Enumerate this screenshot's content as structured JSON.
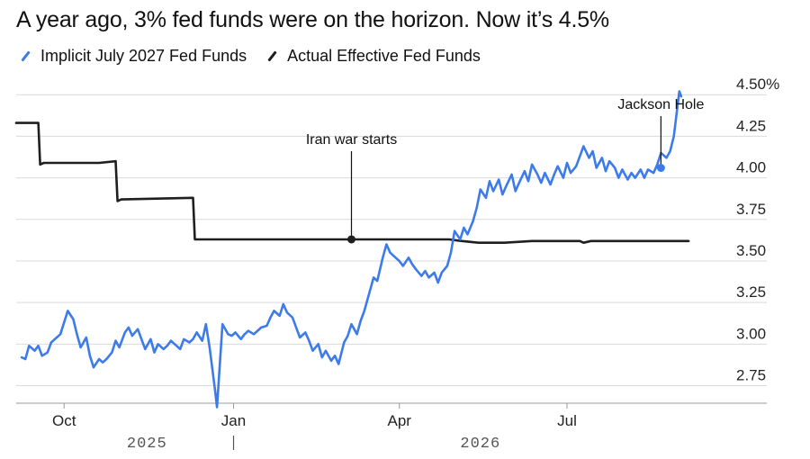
{
  "title": "A year ago, 3% fed funds were on the horizon. Now it’s 4.5%",
  "colors": {
    "implicit": "#3D7BEA",
    "actual": "#1F1F1F",
    "grid": "#D9D9D9"
  },
  "chart_data": {
    "type": "line",
    "ylim": [
      2.65,
      4.55
    ],
    "yticks": [
      2.75,
      3.0,
      3.25,
      3.5,
      3.75,
      4.0,
      4.25,
      4.5
    ],
    "ytick_labels": [
      "2.75",
      "3.00",
      "3.25",
      "3.50",
      "3.75",
      "4.00",
      "4.25",
      "4.50%"
    ],
    "xlim": [
      "2025-09-05",
      "2026-09-25"
    ],
    "xticks": [
      {
        "date": "2025-10-01",
        "label": "Oct"
      },
      {
        "date": "2026-01-01",
        "label": "Jan"
      },
      {
        "date": "2026-04-01",
        "label": "Apr"
      },
      {
        "date": "2026-07-01",
        "label": "Jul"
      }
    ],
    "year_labels": [
      {
        "date": "2025-11-15",
        "label": "2025"
      },
      {
        "date": "2026-05-15",
        "label": "2026"
      }
    ],
    "year_divider": "2026-01-01",
    "grid": "horizontal",
    "legend_position": "top-left",
    "series": [
      {
        "name": "Implicit July 2027 Fed Funds",
        "color_key": "implicit",
        "points": [
          [
            "2025-09-08",
            2.92
          ],
          [
            "2025-09-10",
            2.91
          ],
          [
            "2025-09-12",
            2.99
          ],
          [
            "2025-09-15",
            2.96
          ],
          [
            "2025-09-17",
            2.99
          ],
          [
            "2025-09-19",
            2.93
          ],
          [
            "2025-09-22",
            2.95
          ],
          [
            "2025-09-24",
            3.01
          ],
          [
            "2025-09-26",
            3.03
          ],
          [
            "2025-09-29",
            3.06
          ],
          [
            "2025-10-01",
            3.13
          ],
          [
            "2025-10-03",
            3.2
          ],
          [
            "2025-10-06",
            3.15
          ],
          [
            "2025-10-08",
            3.06
          ],
          [
            "2025-10-10",
            2.98
          ],
          [
            "2025-10-13",
            3.04
          ],
          [
            "2025-10-15",
            2.93
          ],
          [
            "2025-10-17",
            2.86
          ],
          [
            "2025-10-20",
            2.91
          ],
          [
            "2025-10-22",
            2.89
          ],
          [
            "2025-10-24",
            2.91
          ],
          [
            "2025-10-27",
            2.95
          ],
          [
            "2025-10-29",
            3.02
          ],
          [
            "2025-10-31",
            2.98
          ],
          [
            "2025-11-03",
            3.07
          ],
          [
            "2025-11-05",
            3.1
          ],
          [
            "2025-11-07",
            3.05
          ],
          [
            "2025-11-10",
            3.09
          ],
          [
            "2025-11-12",
            3.03
          ],
          [
            "2025-11-14",
            2.97
          ],
          [
            "2025-11-17",
            3.03
          ],
          [
            "2025-11-19",
            2.95
          ],
          [
            "2025-11-21",
            3.0
          ],
          [
            "2025-11-24",
            2.97
          ],
          [
            "2025-11-26",
            2.99
          ],
          [
            "2025-11-28",
            3.02
          ],
          [
            "2025-12-01",
            2.99
          ],
          [
            "2025-12-03",
            2.97
          ],
          [
            "2025-12-05",
            3.03
          ],
          [
            "2025-12-08",
            3.01
          ],
          [
            "2025-12-10",
            3.03
          ],
          [
            "2025-12-12",
            3.07
          ],
          [
            "2025-12-15",
            3.02
          ],
          [
            "2025-12-17",
            3.12
          ],
          [
            "2025-12-19",
            2.98
          ],
          [
            "2025-12-22",
            2.72
          ],
          [
            "2025-12-23",
            2.62
          ],
          [
            "2025-12-26",
            3.12
          ],
          [
            "2025-12-29",
            3.06
          ],
          [
            "2025-12-31",
            3.05
          ],
          [
            "2026-01-02",
            3.07
          ],
          [
            "2026-01-05",
            3.03
          ],
          [
            "2026-01-07",
            3.06
          ],
          [
            "2026-01-09",
            3.08
          ],
          [
            "2026-01-12",
            3.06
          ],
          [
            "2026-01-14",
            3.08
          ],
          [
            "2026-01-16",
            3.1
          ],
          [
            "2026-01-19",
            3.11
          ],
          [
            "2026-01-21",
            3.16
          ],
          [
            "2026-01-23",
            3.2
          ],
          [
            "2026-01-26",
            3.17
          ],
          [
            "2026-01-28",
            3.24
          ],
          [
            "2026-01-30",
            3.19
          ],
          [
            "2026-02-02",
            3.16
          ],
          [
            "2026-02-04",
            3.1
          ],
          [
            "2026-02-06",
            3.04
          ],
          [
            "2026-02-09",
            3.07
          ],
          [
            "2026-02-11",
            3.02
          ],
          [
            "2026-02-13",
            2.96
          ],
          [
            "2026-02-16",
            3.0
          ],
          [
            "2026-02-18",
            2.92
          ],
          [
            "2026-02-20",
            2.96
          ],
          [
            "2026-02-23",
            2.9
          ],
          [
            "2026-02-25",
            2.93
          ],
          [
            "2026-02-27",
            2.88
          ],
          [
            "2026-03-02",
            3.01
          ],
          [
            "2026-03-04",
            3.05
          ],
          [
            "2026-03-06",
            3.12
          ],
          [
            "2026-03-09",
            3.06
          ],
          [
            "2026-03-11",
            3.14
          ],
          [
            "2026-03-13",
            3.2
          ],
          [
            "2026-03-16",
            3.32
          ],
          [
            "2026-03-18",
            3.4
          ],
          [
            "2026-03-20",
            3.38
          ],
          [
            "2026-03-23",
            3.52
          ],
          [
            "2026-03-25",
            3.6
          ],
          [
            "2026-03-27",
            3.55
          ],
          [
            "2026-03-30",
            3.52
          ],
          [
            "2026-04-01",
            3.5
          ],
          [
            "2026-04-03",
            3.47
          ],
          [
            "2026-04-06",
            3.52
          ],
          [
            "2026-04-08",
            3.48
          ],
          [
            "2026-04-10",
            3.45
          ],
          [
            "2026-04-13",
            3.41
          ],
          [
            "2026-04-15",
            3.44
          ],
          [
            "2026-04-17",
            3.4
          ],
          [
            "2026-04-20",
            3.43
          ],
          [
            "2026-04-22",
            3.37
          ],
          [
            "2026-04-24",
            3.43
          ],
          [
            "2026-04-27",
            3.47
          ],
          [
            "2026-04-29",
            3.55
          ],
          [
            "2026-05-01",
            3.68
          ],
          [
            "2026-05-04",
            3.63
          ],
          [
            "2026-05-06",
            3.7
          ],
          [
            "2026-05-08",
            3.66
          ],
          [
            "2026-05-11",
            3.74
          ],
          [
            "2026-05-13",
            3.82
          ],
          [
            "2026-05-15",
            3.93
          ],
          [
            "2026-05-18",
            3.88
          ],
          [
            "2026-05-20",
            3.98
          ],
          [
            "2026-05-22",
            3.92
          ],
          [
            "2026-05-25",
            3.99
          ],
          [
            "2026-05-27",
            3.9
          ],
          [
            "2026-05-29",
            3.95
          ],
          [
            "2026-06-01",
            4.02
          ],
          [
            "2026-06-03",
            3.92
          ],
          [
            "2026-06-05",
            3.97
          ],
          [
            "2026-06-08",
            4.04
          ],
          [
            "2026-06-10",
            3.98
          ],
          [
            "2026-06-12",
            4.08
          ],
          [
            "2026-06-15",
            4.02
          ],
          [
            "2026-06-17",
            3.97
          ],
          [
            "2026-06-19",
            4.03
          ],
          [
            "2026-06-22",
            3.96
          ],
          [
            "2026-06-24",
            4.02
          ],
          [
            "2026-06-26",
            4.07
          ],
          [
            "2026-06-29",
            4.0
          ],
          [
            "2026-07-01",
            4.09
          ],
          [
            "2026-07-03",
            4.03
          ],
          [
            "2026-07-06",
            4.07
          ],
          [
            "2026-07-08",
            4.13
          ],
          [
            "2026-07-10",
            4.19
          ],
          [
            "2026-07-13",
            4.12
          ],
          [
            "2026-07-15",
            4.16
          ],
          [
            "2026-07-17",
            4.06
          ],
          [
            "2026-07-20",
            4.12
          ],
          [
            "2026-07-22",
            4.04
          ],
          [
            "2026-07-24",
            4.1
          ],
          [
            "2026-07-27",
            4.06
          ],
          [
            "2026-07-29",
            4.0
          ],
          [
            "2026-07-31",
            4.05
          ],
          [
            "2026-08-03",
            3.99
          ],
          [
            "2026-08-05",
            4.03
          ],
          [
            "2026-08-07",
            4.0
          ],
          [
            "2026-08-10",
            4.05
          ],
          [
            "2026-08-12",
            4.0
          ],
          [
            "2026-08-14",
            4.05
          ],
          [
            "2026-08-17",
            4.03
          ],
          [
            "2026-08-19",
            4.08
          ],
          [
            "2026-08-21",
            4.15
          ],
          [
            "2026-08-24",
            4.12
          ],
          [
            "2026-08-26",
            4.16
          ],
          [
            "2026-08-28",
            4.25
          ],
          [
            "2026-08-31",
            4.52
          ],
          [
            "2026-09-01",
            4.49
          ]
        ]
      },
      {
        "name": "Actual Effective Fed Funds",
        "color_key": "actual",
        "points": [
          [
            "2025-09-05",
            4.33
          ],
          [
            "2025-09-17",
            4.33
          ],
          [
            "2025-09-18",
            4.08
          ],
          [
            "2025-09-20",
            4.09
          ],
          [
            "2025-10-20",
            4.09
          ],
          [
            "2025-10-29",
            4.1
          ],
          [
            "2025-10-30",
            3.86
          ],
          [
            "2025-11-01",
            3.87
          ],
          [
            "2025-12-10",
            3.88
          ],
          [
            "2025-12-11",
            3.63
          ],
          [
            "2026-03-06",
            3.63
          ],
          [
            "2026-04-28",
            3.63
          ],
          [
            "2026-05-05",
            3.62
          ],
          [
            "2026-05-14",
            3.61
          ],
          [
            "2026-05-28",
            3.61
          ],
          [
            "2026-06-12",
            3.62
          ],
          [
            "2026-07-08",
            3.62
          ],
          [
            "2026-07-10",
            3.61
          ],
          [
            "2026-07-14",
            3.62
          ],
          [
            "2026-09-05",
            3.62
          ]
        ]
      }
    ],
    "annotations": [
      {
        "text": "Iran war starts",
        "date": "2026-03-06",
        "value": 3.63,
        "series": "actual"
      },
      {
        "text": "Jackson Hole",
        "date": "2026-08-21",
        "value": 4.06,
        "series": "implicit"
      }
    ]
  }
}
